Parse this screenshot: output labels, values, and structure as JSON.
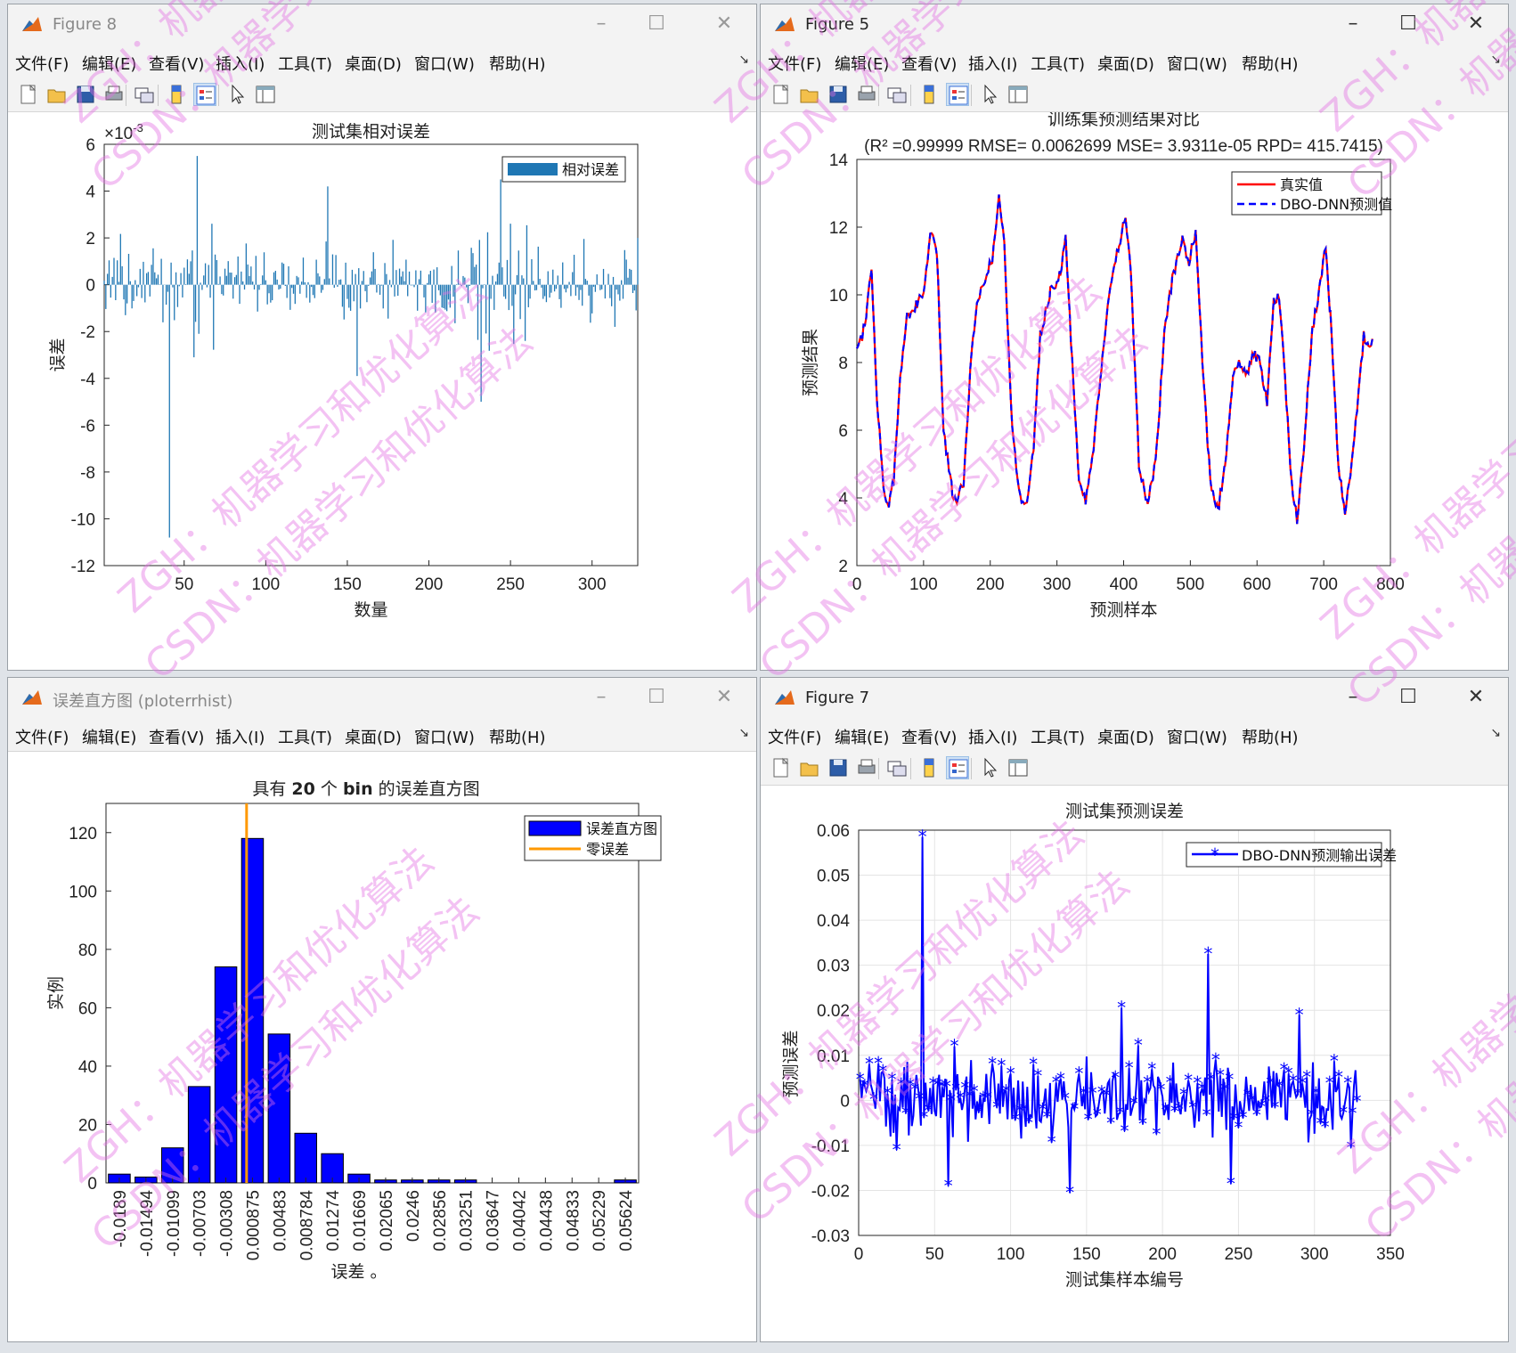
{
  "windows": {
    "w8": {
      "title": "Figure 8"
    },
    "w5": {
      "title": "Figure 5"
    },
    "wh": {
      "title": "误差直方图 (ploterrhist)"
    },
    "w7": {
      "title": "Figure 7"
    }
  },
  "menu": [
    "文件(F)",
    "编辑(E)",
    "查看(V)",
    "插入(I)",
    "工具(T)",
    "桌面(D)",
    "窗口(W)",
    "帮助(H)"
  ],
  "toolbar_icons": [
    "new-figure-icon",
    "open-file-icon",
    "save-icon",
    "print-icon",
    "link-plot-icon",
    "colorbar-icon",
    "legend-icon",
    "pointer-icon",
    "property-editor-icon"
  ],
  "watermark": {
    "a": "ZGH：机器学习和优化算法",
    "b": "CSDN：机器学习和优化算法"
  },
  "colors": {
    "bar_blue": "#1f77b4",
    "true_red": "#ff0000",
    "pred_blue": "#0000ff",
    "hist_blue": "#0000ff",
    "zero_line": "#ff9900",
    "watermark": "#e26ee2"
  },
  "fig8": {
    "chart_data": {
      "type": "bar",
      "title": "测试集相对误差",
      "xlabel": "数量",
      "ylabel": "误差",
      "exponent": "×10",
      "exponent_power": "-3",
      "legend": [
        "相对误差"
      ],
      "xlim": [
        1,
        328
      ],
      "ylim": [
        -12,
        6
      ],
      "xticks": [
        "50",
        "100",
        "150",
        "200",
        "250",
        "300"
      ],
      "xtick_values": [
        50,
        100,
        150,
        200,
        250,
        300
      ],
      "yticks": [
        "6",
        "4",
        "2",
        "0",
        "-2",
        "-4",
        "-6",
        "-8",
        "-10",
        "-12"
      ],
      "ytick_values": [
        6,
        4,
        2,
        0,
        -2,
        -4,
        -6,
        -8,
        -10,
        -12
      ],
      "n": 328,
      "highlights": [
        {
          "x": 41,
          "y": -10.8
        },
        {
          "x": 58,
          "y": 5.5
        },
        {
          "x": 138,
          "y": 4.2
        },
        {
          "x": 156,
          "y": -3.9
        },
        {
          "x": 232,
          "y": -5.0
        },
        {
          "x": 244,
          "y": 4.5
        },
        {
          "x": 259,
          "y": -2.4
        },
        {
          "x": 56,
          "y": -3.1
        },
        {
          "x": 328,
          "y": 2.0
        }
      ]
    }
  },
  "fig5": {
    "chart_data": {
      "type": "line",
      "title": "训练集预测结果对比",
      "subtitle": "(R² =0.99999 RMSE= 0.0062699 MSE= 3.9311e-05 RPD= 415.7415)",
      "xlabel": "预测样本",
      "ylabel": "预测结果",
      "xlim": [
        0,
        800
      ],
      "ylim": [
        2,
        14
      ],
      "xticks": [
        "0",
        "100",
        "200",
        "300",
        "400",
        "500",
        "600",
        "700",
        "800"
      ],
      "xtick_values": [
        0,
        100,
        200,
        300,
        400,
        500,
        600,
        700,
        800
      ],
      "yticks": [
        "2",
        "4",
        "6",
        "8",
        "10",
        "12",
        "14"
      ],
      "ytick_values": [
        2,
        4,
        6,
        8,
        10,
        12,
        14
      ],
      "series": [
        {
          "name": "真实值",
          "color": "#ff0000",
          "style": "solid"
        },
        {
          "name": "DBO-DNN预测值",
          "color": "#0000ff",
          "style": "dashed"
        }
      ],
      "keypoints": [
        [
          0,
          8.5
        ],
        [
          8,
          8.8
        ],
        [
          15,
          9.6
        ],
        [
          22,
          10.8
        ],
        [
          30,
          7.0
        ],
        [
          40,
          4.3
        ],
        [
          48,
          3.7
        ],
        [
          55,
          4.5
        ],
        [
          65,
          7.5
        ],
        [
          75,
          9.4
        ],
        [
          90,
          9.7
        ],
        [
          100,
          10.0
        ],
        [
          110,
          11.8
        ],
        [
          120,
          11.3
        ],
        [
          130,
          6.0
        ],
        [
          143,
          4.2
        ],
        [
          150,
          3.9
        ],
        [
          160,
          4.5
        ],
        [
          170,
          7.8
        ],
        [
          180,
          9.8
        ],
        [
          195,
          10.7
        ],
        [
          203,
          11.0
        ],
        [
          213,
          12.9
        ],
        [
          221,
          11.5
        ],
        [
          233,
          6.0
        ],
        [
          243,
          4.2
        ],
        [
          255,
          3.7
        ],
        [
          265,
          5.5
        ],
        [
          275,
          8.8
        ],
        [
          290,
          10.1
        ],
        [
          305,
          10.6
        ],
        [
          313,
          11.6
        ],
        [
          323,
          8.0
        ],
        [
          333,
          4.6
        ],
        [
          343,
          3.8
        ],
        [
          355,
          5.5
        ],
        [
          368,
          8.0
        ],
        [
          380,
          10.3
        ],
        [
          393,
          11.5
        ],
        [
          403,
          12.4
        ],
        [
          411,
          10.5
        ],
        [
          423,
          5.0
        ],
        [
          436,
          3.8
        ],
        [
          448,
          5.0
        ],
        [
          461,
          8.8
        ],
        [
          473,
          10.5
        ],
        [
          488,
          11.6
        ],
        [
          498,
          11.0
        ],
        [
          508,
          11.8
        ],
        [
          518,
          8.0
        ],
        [
          530,
          4.5
        ],
        [
          541,
          3.6
        ],
        [
          552,
          5.0
        ],
        [
          565,
          7.8
        ],
        [
          575,
          8.0
        ],
        [
          585,
          7.6
        ],
        [
          595,
          8.3
        ],
        [
          605,
          8.0
        ],
        [
          615,
          6.8
        ],
        [
          625,
          9.8
        ],
        [
          633,
          10.0
        ],
        [
          642,
          7.5
        ],
        [
          652,
          4.4
        ],
        [
          660,
          3.4
        ],
        [
          670,
          5.5
        ],
        [
          683,
          9.0
        ],
        [
          693,
          10.1
        ],
        [
          703,
          11.4
        ],
        [
          710,
          9.4
        ],
        [
          722,
          5.0
        ],
        [
          732,
          3.6
        ],
        [
          742,
          5.0
        ],
        [
          752,
          7.0
        ],
        [
          760,
          8.8
        ],
        [
          767,
          8.5
        ],
        [
          773,
          8.7
        ]
      ]
    }
  },
  "hist": {
    "chart_data": {
      "type": "bar",
      "title_prefix": "具有 ",
      "title_bold_n": "20",
      "title_mid": " 个 ",
      "title_bold_bin": "bin",
      "title_suffix": " 的误差直方图",
      "xlabel": "误差 。",
      "ylabel": "实例",
      "ylim": [
        0,
        130
      ],
      "yticks": [
        "0",
        "20",
        "40",
        "60",
        "80",
        "100",
        "120"
      ],
      "ytick_values": [
        0,
        20,
        40,
        60,
        80,
        100,
        120
      ],
      "categories": [
        "-0.0189",
        "-0.01494",
        "-0.01099",
        "-0.00703",
        "-0.00308",
        "0.000875",
        "0.00483",
        "0.008784",
        "0.01274",
        "0.01669",
        "0.02065",
        "0.0246",
        "0.02856",
        "0.03251",
        "0.03647",
        "0.04042",
        "0.04438",
        "0.04833",
        "0.05229",
        "0.05624"
      ],
      "values": [
        3,
        2,
        12,
        33,
        74,
        118,
        51,
        17,
        10,
        3,
        1,
        1,
        1,
        1,
        0,
        0,
        0,
        0,
        0,
        1
      ],
      "zero_error_at": 0,
      "legend": [
        "误差直方图",
        "零误差"
      ]
    }
  },
  "fig7": {
    "chart_data": {
      "type": "line",
      "title": "测试集预测误差",
      "xlabel": "测试集样本编号",
      "ylabel": "预测误差",
      "xlim": [
        0,
        350
      ],
      "ylim": [
        -0.03,
        0.06
      ],
      "xticks": [
        "0",
        "50",
        "100",
        "150",
        "200",
        "250",
        "300",
        "350"
      ],
      "xtick_values": [
        0,
        50,
        100,
        150,
        200,
        250,
        300,
        350
      ],
      "yticks": [
        "0.06",
        "0.05",
        "0.04",
        "0.03",
        "0.02",
        "0.01",
        "0",
        "-0.01",
        "-0.02",
        "-0.03"
      ],
      "ytick_values": [
        0.06,
        0.05,
        0.04,
        0.03,
        0.02,
        0.01,
        0,
        -0.01,
        -0.02,
        -0.03
      ],
      "grid": true,
      "series": [
        {
          "name": "DBO-DNN预测输出误差",
          "color": "#0000ff",
          "marker": "*"
        }
      ],
      "n": 328,
      "highlights": [
        {
          "x": 42,
          "y": 0.0585
        },
        {
          "x": 59,
          "y": -0.019
        },
        {
          "x": 139,
          "y": -0.0205
        },
        {
          "x": 173,
          "y": 0.0205
        },
        {
          "x": 230,
          "y": 0.0325
        },
        {
          "x": 245,
          "y": -0.0185
        },
        {
          "x": 290,
          "y": 0.019
        },
        {
          "x": 324,
          "y": -0.0105
        },
        {
          "x": 25,
          "y": -0.011
        },
        {
          "x": 63,
          "y": 0.012
        }
      ]
    }
  }
}
